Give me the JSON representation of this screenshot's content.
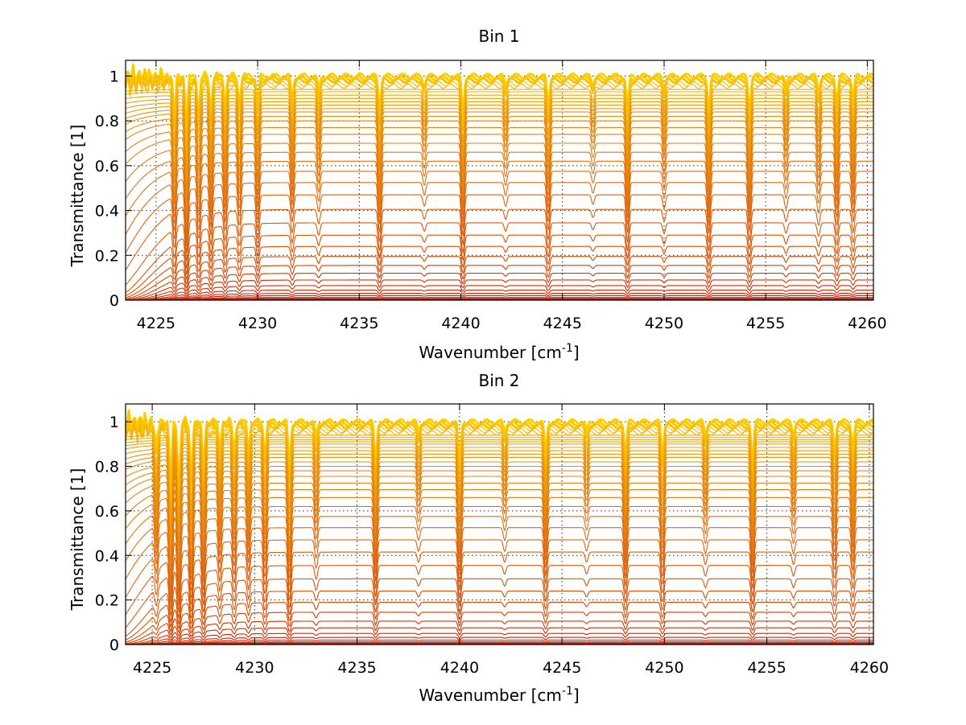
{
  "chart_data": [
    {
      "type": "line",
      "title": "Bin 1",
      "xlabel": "Wavenumber [cm",
      "xlabel_sup": "-1",
      "xlabel_end": "]",
      "ylabel": "Transmittance [1]",
      "xlim": [
        4223.5,
        4260.3
      ],
      "ylim": [
        0,
        1.07
      ],
      "xticks": [
        4225,
        4230,
        4235,
        4240,
        4245,
        4250,
        4255,
        4260
      ],
      "yticks": [
        0,
        0.2,
        0.4,
        0.6,
        0.8,
        1
      ],
      "grid": true,
      "curve_levels": [
        1.0,
        0.99,
        0.98,
        0.965,
        0.955,
        0.94,
        0.93,
        0.915,
        0.9,
        0.885,
        0.87,
        0.855,
        0.84,
        0.82,
        0.8,
        0.77,
        0.74,
        0.7,
        0.66,
        0.62,
        0.575,
        0.525,
        0.47,
        0.405,
        0.345,
        0.29,
        0.24,
        0.195,
        0.155,
        0.12,
        0.09,
        0.065,
        0.045,
        0.03,
        0.02,
        0.012,
        0.007,
        0.004
      ],
      "absorption_lines": [
        {
          "x": 4225.9,
          "depth": 0.55
        },
        {
          "x": 4226.5,
          "depth": 0.7
        },
        {
          "x": 4227.1,
          "depth": 0.5
        },
        {
          "x": 4227.7,
          "depth": 0.45
        },
        {
          "x": 4228.4,
          "depth": 0.4
        },
        {
          "x": 4229.1,
          "depth": 0.35
        },
        {
          "x": 4230.0,
          "depth": 0.4
        },
        {
          "x": 4231.7,
          "depth": 0.3
        },
        {
          "x": 4233.0,
          "depth": 0.18
        },
        {
          "x": 4236.0,
          "depth": 0.45
        },
        {
          "x": 4238.2,
          "depth": 0.12
        },
        {
          "x": 4240.1,
          "depth": 0.5
        },
        {
          "x": 4242.2,
          "depth": 0.12
        },
        {
          "x": 4244.3,
          "depth": 0.42
        },
        {
          "x": 4246.5,
          "depth": 0.1
        },
        {
          "x": 4248.2,
          "depth": 0.45
        },
        {
          "x": 4250.0,
          "depth": 0.15
        },
        {
          "x": 4252.2,
          "depth": 0.45
        },
        {
          "x": 4254.2,
          "depth": 0.42
        },
        {
          "x": 4256.0,
          "depth": 0.15
        },
        {
          "x": 4257.6,
          "depth": 0.2
        },
        {
          "x": 4258.5,
          "depth": 0.35
        },
        {
          "x": 4259.3,
          "depth": 0.3
        }
      ]
    },
    {
      "type": "line",
      "title": "Bin 2",
      "xlabel": "Wavenumber [cm",
      "xlabel_sup": "-1",
      "xlabel_end": "]",
      "ylabel": "Transmittance [1]",
      "xlim": [
        4223.7,
        4260.2
      ],
      "ylim": [
        0,
        1.08
      ],
      "xticks": [
        4225,
        4230,
        4235,
        4240,
        4245,
        4250,
        4255,
        4260
      ],
      "yticks": [
        0,
        0.2,
        0.4,
        0.6,
        0.8,
        1
      ],
      "grid": true,
      "curve_levels": [
        1.0,
        0.99,
        0.98,
        0.97,
        0.96,
        0.95,
        0.94,
        0.93,
        0.92,
        0.91,
        0.9,
        0.885,
        0.87,
        0.855,
        0.84,
        0.82,
        0.8,
        0.78,
        0.755,
        0.725,
        0.695,
        0.66,
        0.62,
        0.575,
        0.525,
        0.47,
        0.415,
        0.355,
        0.295,
        0.24,
        0.19,
        0.145,
        0.105,
        0.075,
        0.05,
        0.032,
        0.02,
        0.012,
        0.007,
        0.004
      ],
      "absorption_lines": [
        {
          "x": 4225.2,
          "depth": 0.4
        },
        {
          "x": 4225.9,
          "depth": 0.9
        },
        {
          "x": 4226.3,
          "depth": 0.85
        },
        {
          "x": 4226.9,
          "depth": 0.75
        },
        {
          "x": 4227.5,
          "depth": 0.6
        },
        {
          "x": 4228.3,
          "depth": 0.35
        },
        {
          "x": 4229.0,
          "depth": 0.4
        },
        {
          "x": 4229.7,
          "depth": 0.35
        },
        {
          "x": 4230.5,
          "depth": 0.45
        },
        {
          "x": 4231.7,
          "depth": 0.6
        },
        {
          "x": 4233.0,
          "depth": 0.2
        },
        {
          "x": 4235.9,
          "depth": 0.5
        },
        {
          "x": 4238.0,
          "depth": 0.12
        },
        {
          "x": 4240.0,
          "depth": 0.55
        },
        {
          "x": 4242.2,
          "depth": 0.12
        },
        {
          "x": 4244.2,
          "depth": 0.42
        },
        {
          "x": 4246.2,
          "depth": 0.12
        },
        {
          "x": 4248.1,
          "depth": 0.45
        },
        {
          "x": 4249.9,
          "depth": 0.45
        },
        {
          "x": 4252.0,
          "depth": 0.15
        },
        {
          "x": 4254.3,
          "depth": 0.5
        },
        {
          "x": 4256.3,
          "depth": 0.15
        },
        {
          "x": 4258.3,
          "depth": 0.35
        },
        {
          "x": 4259.2,
          "depth": 0.35
        }
      ]
    }
  ]
}
